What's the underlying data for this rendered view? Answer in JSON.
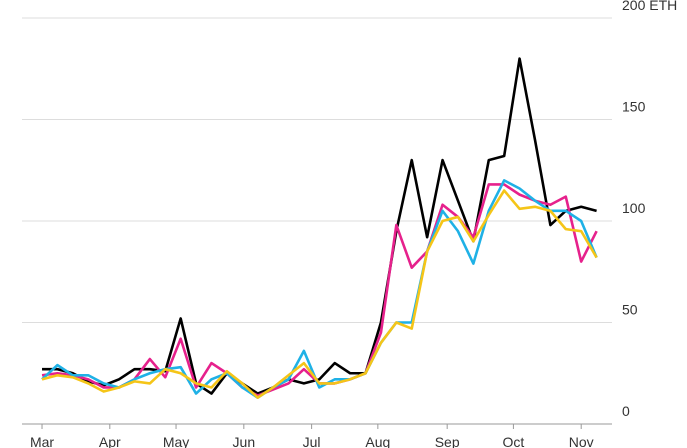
{
  "chart_data": {
    "type": "line",
    "x": [
      0,
      1,
      2,
      3,
      4,
      5,
      6,
      7,
      8,
      9,
      10,
      11,
      12,
      13,
      14,
      15,
      16,
      17,
      18,
      19,
      20,
      21,
      22,
      23,
      24,
      25,
      26,
      27,
      28,
      29,
      30,
      31,
      32,
      33,
      34,
      35,
      36
    ],
    "series": [
      {
        "color": "#000000",
        "values": [
          27,
          27,
          25,
          21,
          19,
          22,
          27,
          27,
          26,
          52,
          20,
          15,
          25,
          20,
          15,
          18,
          22,
          20,
          22,
          30,
          25,
          25,
          50,
          95,
          130,
          92,
          130,
          110,
          90,
          130,
          132,
          180,
          140,
          98,
          105,
          107,
          105
        ]
      },
      {
        "color": "#e6218c",
        "values": [
          24,
          25,
          24,
          22,
          18,
          18,
          22,
          32,
          23,
          42,
          18,
          30,
          25,
          18,
          14,
          17,
          20,
          27,
          20,
          20,
          22,
          25,
          45,
          98,
          77,
          85,
          108,
          102,
          92,
          118,
          118,
          113,
          110,
          108,
          112,
          80,
          95
        ]
      },
      {
        "color": "#1fb1e6",
        "values": [
          22,
          29,
          24,
          24,
          20,
          18,
          22,
          25,
          27,
          28,
          15,
          22,
          25,
          18,
          13,
          18,
          22,
          36,
          18,
          22,
          22,
          25,
          40,
          50,
          50,
          85,
          105,
          95,
          79,
          105,
          120,
          116,
          110,
          105,
          105,
          100,
          82
        ]
      },
      {
        "color": "#f5c518",
        "values": [
          22,
          24,
          23,
          20,
          16,
          18,
          21,
          20,
          27,
          25,
          20,
          18,
          26,
          20,
          13,
          18,
          24,
          30,
          20,
          20,
          22,
          25,
          40,
          50,
          47,
          85,
          100,
          102,
          90,
          103,
          115,
          106,
          107,
          105,
          96,
          95,
          82
        ]
      }
    ],
    "xlim": [
      -1.3,
      37
    ],
    "xticks": [
      {
        "value": 0,
        "label": "Mar"
      },
      {
        "value": 4.4,
        "label": "Apr"
      },
      {
        "value": 8.7,
        "label": "May"
      },
      {
        "value": 13.1,
        "label": "Jun"
      },
      {
        "value": 17.5,
        "label": "Jul"
      },
      {
        "value": 21.8,
        "label": "Aug"
      },
      {
        "value": 26.3,
        "label": "Sep"
      },
      {
        "value": 30.6,
        "label": "Oct"
      },
      {
        "value": 35,
        "label": "Nov"
      }
    ],
    "ylim": [
      0,
      200
    ],
    "yticks": [
      0,
      50,
      100,
      150,
      {
        "value": 200,
        "label": "200 ETH"
      }
    ],
    "grid": true
  }
}
